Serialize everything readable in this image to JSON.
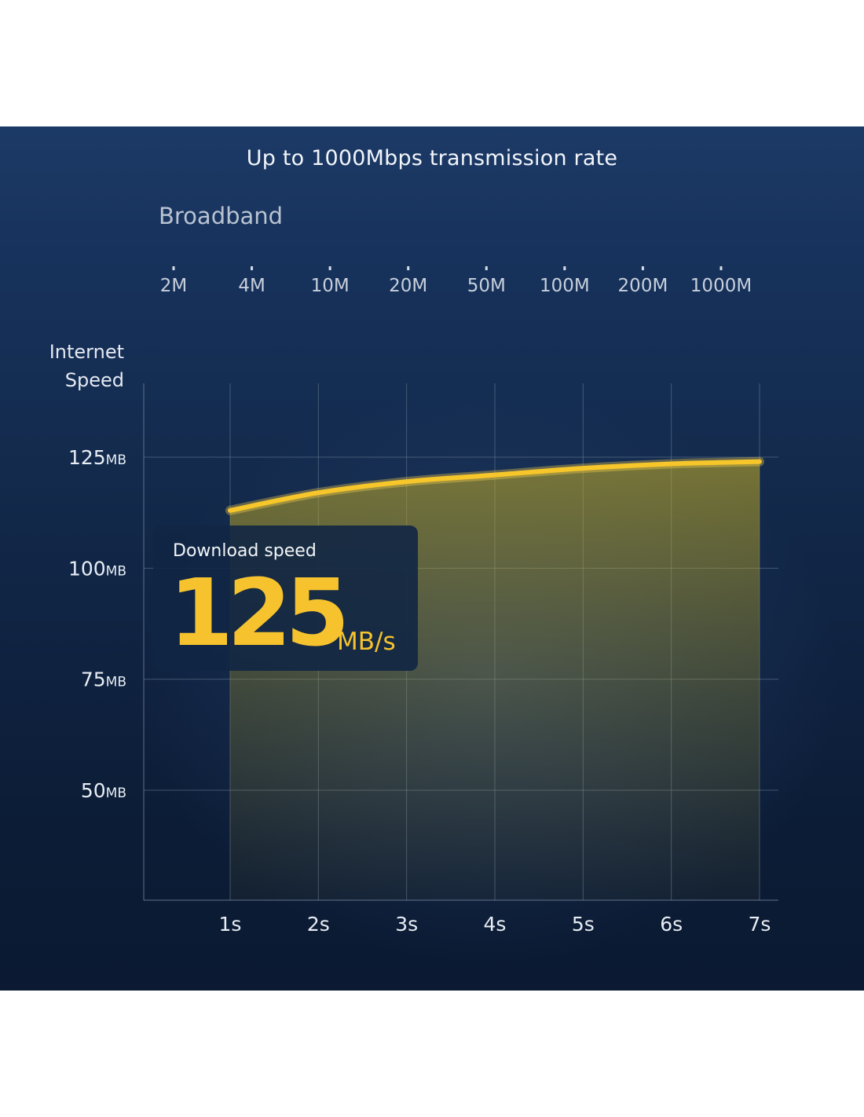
{
  "title": "Up to 1000Mbps transmission rate",
  "broadband": {
    "label": "Broadband",
    "ticks": [
      "2M",
      "4M",
      "10M",
      "20M",
      "50M",
      "100M",
      "200M",
      "1000M"
    ]
  },
  "chart_data": {
    "type": "area",
    "ylabel_lines": [
      "Internet",
      "Speed"
    ],
    "y_ticks": [
      {
        "value": 125,
        "label": "125",
        "unit": "MB"
      },
      {
        "value": 100,
        "label": "100",
        "unit": "MB"
      },
      {
        "value": 75,
        "label": "75",
        "unit": "MB"
      },
      {
        "value": 50,
        "label": "50",
        "unit": "MB"
      }
    ],
    "x_ticks": [
      "1s",
      "2s",
      "3s",
      "4s",
      "5s",
      "6s",
      "7s"
    ],
    "x": [
      1,
      2,
      3,
      4,
      5,
      6,
      7
    ],
    "values": [
      113,
      117,
      119.5,
      121,
      122.5,
      123.5,
      124
    ],
    "ylim": [
      30,
      125
    ],
    "grid": true
  },
  "callout": {
    "label": "Download speed",
    "value": "125",
    "unit": "MB/s"
  },
  "colors": {
    "accent": "#f6c32e",
    "background": "#132a4c",
    "grid": "#6d7f99"
  }
}
